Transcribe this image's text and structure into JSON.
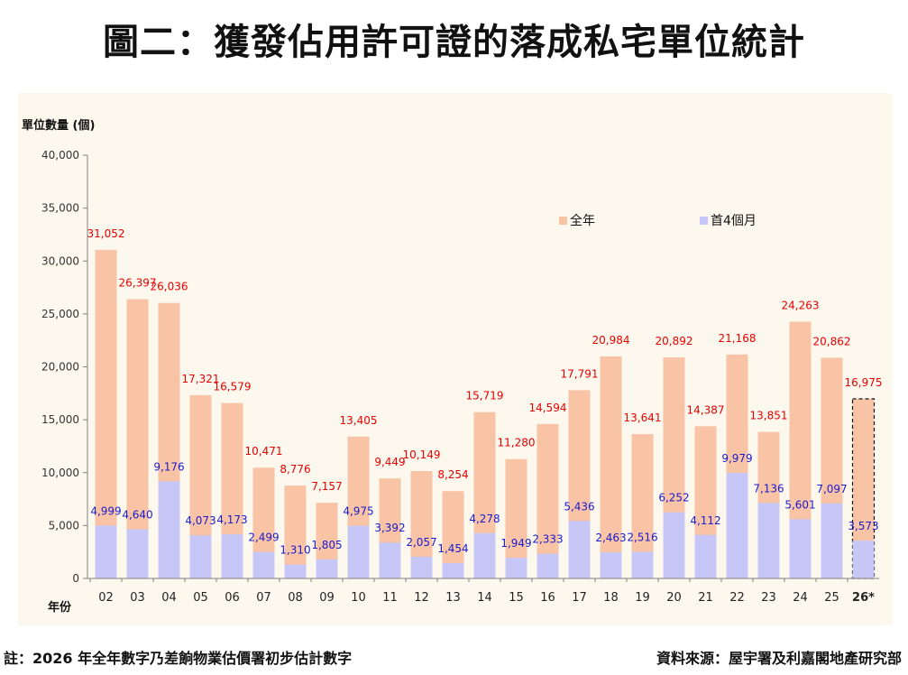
{
  "title": "圖二：獲發佔用許可證的落成私宅單位統計",
  "footer": {
    "note": "註：2026 年全年數字乃差餉物業估價署初步估計數字",
    "source": "資料來源：屋宇署及利嘉閣地產研究部"
  },
  "colors": {
    "full_year": "#f8c4a5",
    "first_four_months": "#c7c7f7",
    "full_year_label": "#e60000",
    "first_four_label": "#1a1acc",
    "axis": "#808080"
  },
  "chart_data": {
    "type": "bar",
    "title": "圖二：獲發佔用許可證的落成私宅單位統計",
    "ylabel": "單位數量 (個)",
    "xlabel": "年份",
    "ylim": [
      0,
      40000
    ],
    "yticks": [
      0,
      5000,
      10000,
      15000,
      20000,
      25000,
      30000,
      35000,
      40000
    ],
    "ytick_labels": [
      "0",
      "5,000",
      "10,000",
      "15,000",
      "20,000",
      "25,000",
      "30,000",
      "35,000",
      "40,000"
    ],
    "grid": false,
    "legend_position": "top-right",
    "categories": [
      "02",
      "03",
      "04",
      "05",
      "06",
      "07",
      "08",
      "09",
      "10",
      "11",
      "12",
      "13",
      "14",
      "15",
      "16",
      "17",
      "18",
      "19",
      "20",
      "21",
      "22",
      "23",
      "24",
      "25",
      "26*"
    ],
    "series": [
      {
        "name": "全年",
        "values": [
          31052,
          26397,
          26036,
          17321,
          16579,
          10471,
          8776,
          7157,
          13405,
          9449,
          10149,
          8254,
          15719,
          11280,
          14594,
          17791,
          20984,
          13641,
          20892,
          14387,
          21168,
          13851,
          24263,
          20862,
          16975
        ],
        "labels": [
          "31,052",
          "26,397",
          "26,036",
          "17,321",
          "16,579",
          "10,471",
          "8,776",
          "7,157",
          "13,405",
          "9,449",
          "10,149",
          "8,254",
          "15,719",
          "11,280",
          "14,594",
          "17,791",
          "20,984",
          "13,641",
          "20,892",
          "14,387",
          "21,168",
          "13,851",
          "24,263",
          "20,862",
          "16,975"
        ]
      },
      {
        "name": "首4個月",
        "values": [
          4999,
          4640,
          9176,
          4073,
          4173,
          2499,
          1310,
          1805,
          4975,
          3392,
          2057,
          1454,
          4278,
          1949,
          2333,
          5436,
          2463,
          2516,
          6252,
          4112,
          9979,
          7136,
          5601,
          7097,
          3573
        ],
        "labels": [
          "4,999",
          "4,640",
          "9,176",
          "4,073",
          "4,173",
          "2,499",
          "1,310",
          "1,805",
          "4,975",
          "3,392",
          "2,057",
          "1,454",
          "4,278",
          "1,949",
          "2,333",
          "5,436",
          "2,463",
          "2,516",
          "6,252",
          "4,112",
          "9,979",
          "7,136",
          "5,601",
          "7,097",
          "3,573"
        ]
      }
    ],
    "estimated_category": "26*"
  }
}
